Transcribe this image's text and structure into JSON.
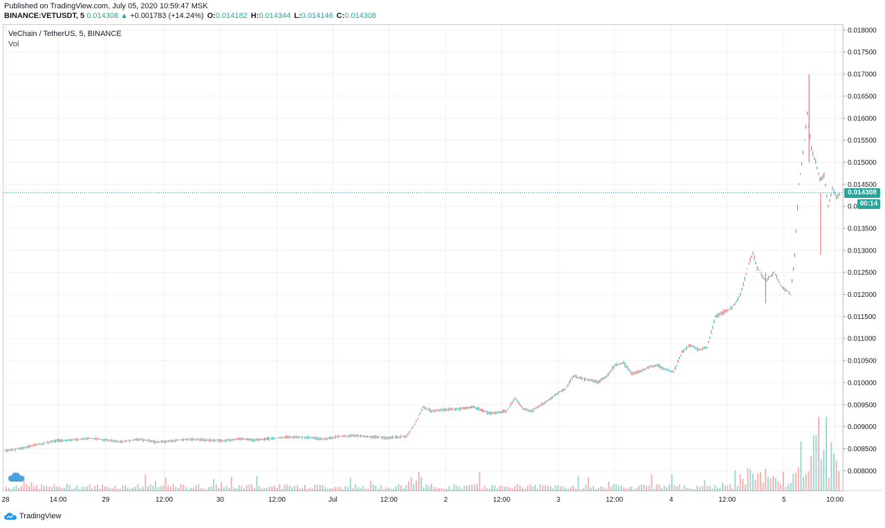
{
  "header": {
    "published": "Published on TradingView.com, July 05, 2020 10:59:47 MSK",
    "symbol": "BINANCE:VETUSDT, 5",
    "last": "0.014308",
    "change_arrow": "▲",
    "change": "+0.001783 (+14.24%)",
    "o_label": "O:",
    "o_value": "0.014182",
    "h_label": "H:",
    "h_value": "0.014344",
    "l_label": "L:",
    "l_value": "0.014146",
    "c_label": "C:",
    "c_value": "0.014308"
  },
  "legend": {
    "title": "VeChain / TetherUS, 5, BINANCE",
    "vol": "Vol"
  },
  "price_tag": "0.014308",
  "time_tag": "00:14",
  "footer": {
    "brand": "TradingView",
    "logo_icon": "tradingview-cloud-icon"
  },
  "colors": {
    "up": "#26a69a",
    "down": "#ef5350",
    "grid": "#eef0f3",
    "tag": "#26a69a"
  },
  "chart_data": {
    "type": "line",
    "title": "VeChain / TetherUS, 5, BINANCE",
    "xlabel": "",
    "ylabel": "",
    "ylim": [
      0.00755,
      0.0181
    ],
    "xlim": [
      0,
      100
    ],
    "grid": true,
    "y_ticks": [
      "0.008000",
      "0.008500",
      "0.009000",
      "0.009500",
      "0.010000",
      "0.010500",
      "0.011000",
      "0.011500",
      "0.012000",
      "0.012500",
      "0.013000",
      "0.013500",
      "0.014000",
      "0.014500",
      "0.015000",
      "0.015500",
      "0.016000",
      "0.016500",
      "0.017000",
      "0.017500",
      "0.018000"
    ],
    "x_ticks": [
      {
        "label": "28",
        "x": 0
      },
      {
        "label": "14:00",
        "x": 6.3
      },
      {
        "label": "29",
        "x": 12
      },
      {
        "label": "12:00",
        "x": 19
      },
      {
        "label": "30",
        "x": 25.7
      },
      {
        "label": "12:00",
        "x": 32.5
      },
      {
        "label": "Jul",
        "x": 39.2
      },
      {
        "label": "12:00",
        "x": 45.9
      },
      {
        "label": "2",
        "x": 52.7
      },
      {
        "label": "12:00",
        "x": 59.4
      },
      {
        "label": "3",
        "x": 66.2
      },
      {
        "label": "12:00",
        "x": 72.9
      },
      {
        "label": "4",
        "x": 79.7
      },
      {
        "label": "12:00",
        "x": 86.4
      },
      {
        "label": "5",
        "x": 93.2
      },
      {
        "label": "10:00",
        "x": 99.3
      }
    ],
    "series": [
      {
        "x": [
          0,
          2,
          4,
          6,
          8,
          10,
          12,
          14,
          16,
          18,
          20,
          22,
          24,
          26,
          28,
          30,
          32,
          34,
          36,
          38,
          40,
          42,
          44,
          46,
          48,
          49,
          50,
          51,
          52,
          54,
          56,
          58,
          60,
          61,
          62,
          63,
          64,
          65,
          66,
          67,
          68,
          69,
          70,
          71,
          72,
          73,
          74,
          75,
          76,
          77,
          78,
          79,
          80,
          81,
          82,
          83,
          84,
          85,
          86,
          87,
          88,
          89,
          89.5,
          90,
          91,
          92,
          93,
          93.5,
          94,
          94.5,
          95,
          95.5,
          96,
          96.5,
          97,
          97.5,
          98,
          98.5,
          99,
          99.5,
          100
        ],
        "values": [
          0.00845,
          0.00852,
          0.0086,
          0.00868,
          0.0087,
          0.00874,
          0.0087,
          0.00866,
          0.00872,
          0.00865,
          0.00868,
          0.00872,
          0.0087,
          0.00868,
          0.00873,
          0.0087,
          0.00874,
          0.00877,
          0.00876,
          0.00872,
          0.00878,
          0.0088,
          0.00876,
          0.00875,
          0.00878,
          0.00905,
          0.00945,
          0.00935,
          0.00938,
          0.0094,
          0.00945,
          0.0093,
          0.00935,
          0.00965,
          0.0094,
          0.00935,
          0.00948,
          0.0096,
          0.00975,
          0.00985,
          0.01015,
          0.0101,
          0.01005,
          0.01002,
          0.01015,
          0.0104,
          0.01045,
          0.0102,
          0.01025,
          0.01035,
          0.0104,
          0.0103,
          0.01025,
          0.0107,
          0.01085,
          0.01075,
          0.0108,
          0.0115,
          0.0116,
          0.0117,
          0.012,
          0.0127,
          0.01295,
          0.0126,
          0.0123,
          0.0125,
          0.01215,
          0.0121,
          0.012,
          0.0129,
          0.0145,
          0.0152,
          0.0161,
          0.0153,
          0.015,
          0.0146,
          0.0147,
          0.014,
          0.0144,
          0.0142,
          0.0143
        ]
      }
    ],
    "volume_note": "Vol"
  }
}
